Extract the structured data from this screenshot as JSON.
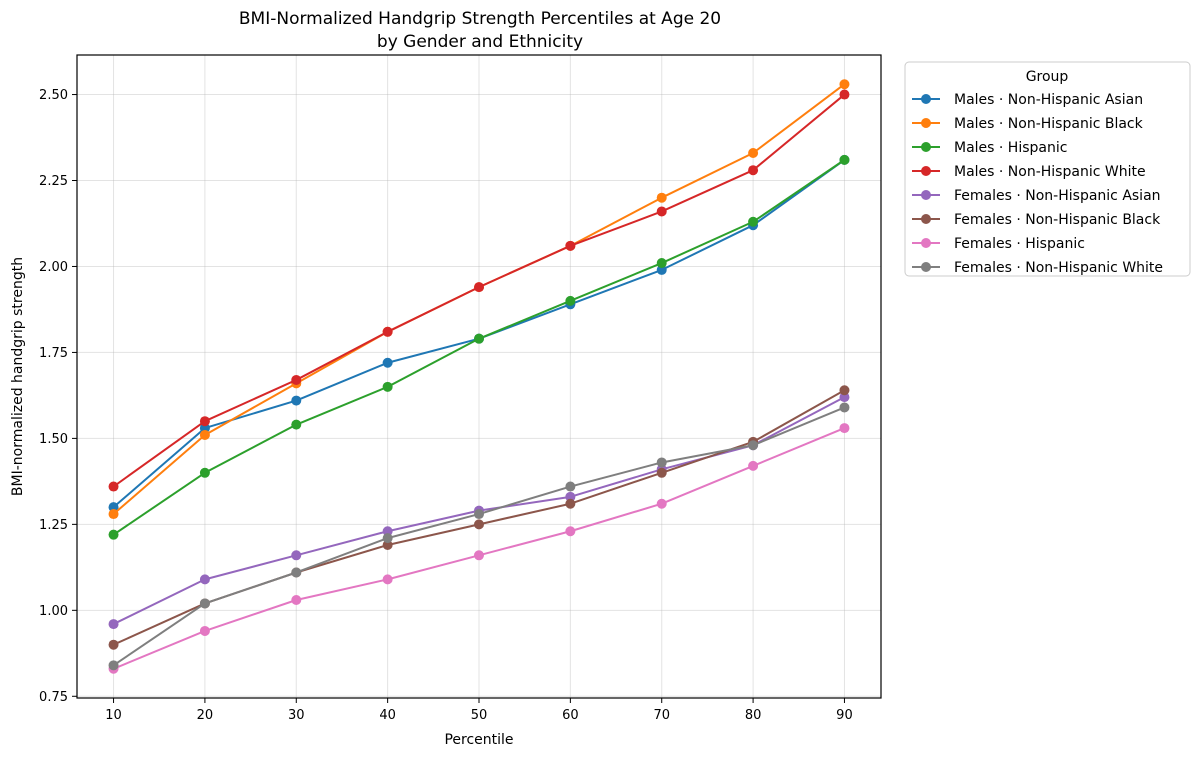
{
  "chart_data": {
    "type": "line",
    "title_line1": "BMI-Normalized Handgrip Strength Percentiles at Age 20",
    "title_line2": "by Gender and Ethnicity",
    "xlabel": "Percentile",
    "ylabel": "BMI-normalized handgrip strength",
    "x": [
      10,
      20,
      30,
      40,
      50,
      60,
      70,
      80,
      90
    ],
    "x_tick_labels": [
      "10",
      "20",
      "30",
      "40",
      "50",
      "60",
      "70",
      "80",
      "90"
    ],
    "xlim": [
      6,
      94
    ],
    "ylim": [
      0.745,
      2.615
    ],
    "y_ticks": [
      0.75,
      1.0,
      1.25,
      1.5,
      1.75,
      2.0,
      2.25,
      2.5
    ],
    "y_tick_labels": [
      "0.75",
      "1.00",
      "1.25",
      "1.50",
      "1.75",
      "2.00",
      "2.25",
      "2.50"
    ],
    "grid": true,
    "legend": {
      "title": "Group",
      "placement": "outside-right"
    },
    "series": [
      {
        "name": "Males · Non-Hispanic Asian",
        "color": "#1f77b4",
        "values": [
          1.3,
          1.53,
          1.61,
          1.72,
          1.79,
          1.89,
          1.99,
          2.12,
          2.31
        ]
      },
      {
        "name": "Males · Non-Hispanic Black",
        "color": "#ff7f0e",
        "values": [
          1.28,
          1.51,
          1.66,
          1.81,
          1.94,
          2.06,
          2.2,
          2.33,
          2.53
        ]
      },
      {
        "name": "Males · Hispanic",
        "color": "#2ca02c",
        "values": [
          1.22,
          1.4,
          1.54,
          1.65,
          1.79,
          1.9,
          2.01,
          2.13,
          2.31
        ]
      },
      {
        "name": "Males · Non-Hispanic White",
        "color": "#d62728",
        "values": [
          1.36,
          1.55,
          1.67,
          1.81,
          1.94,
          2.06,
          2.16,
          2.28,
          2.5
        ]
      },
      {
        "name": "Females · Non-Hispanic Asian",
        "color": "#9467bd",
        "values": [
          0.96,
          1.09,
          1.16,
          1.23,
          1.29,
          1.33,
          1.41,
          1.48,
          1.62
        ]
      },
      {
        "name": "Females · Non-Hispanic Black",
        "color": "#8c564b",
        "values": [
          0.9,
          1.02,
          1.11,
          1.19,
          1.25,
          1.31,
          1.4,
          1.49,
          1.64
        ]
      },
      {
        "name": "Females · Hispanic",
        "color": "#e377c2",
        "values": [
          0.83,
          0.94,
          1.03,
          1.09,
          1.16,
          1.23,
          1.31,
          1.42,
          1.53
        ]
      },
      {
        "name": "Females · Non-Hispanic White",
        "color": "#7f7f7f",
        "values": [
          0.84,
          1.02,
          1.11,
          1.21,
          1.28,
          1.36,
          1.43,
          1.48,
          1.59
        ]
      }
    ]
  }
}
